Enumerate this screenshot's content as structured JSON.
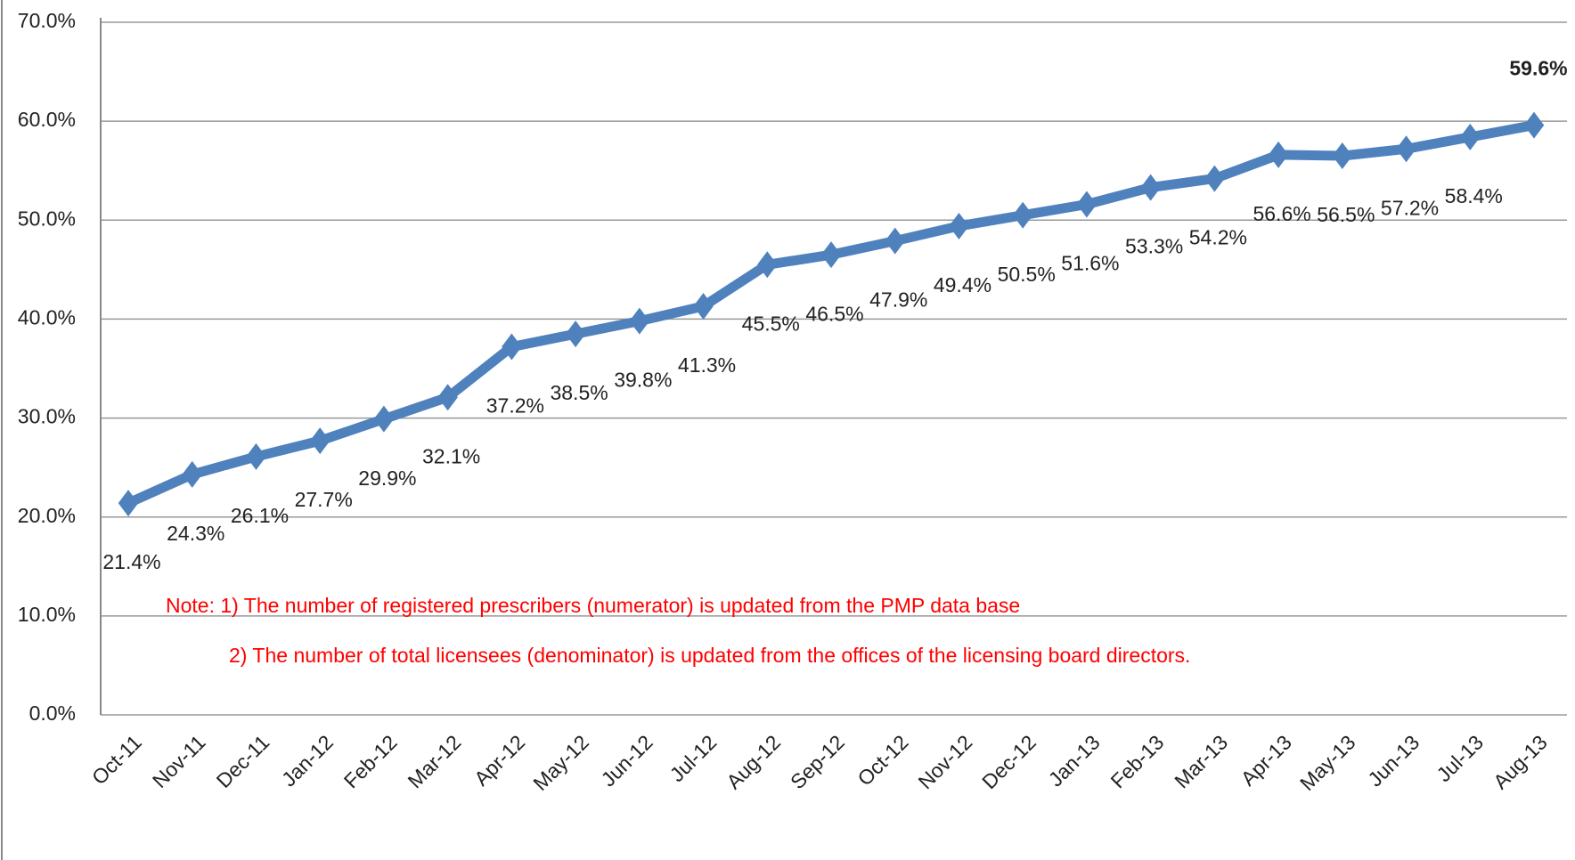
{
  "chart_data": {
    "type": "line",
    "categories": [
      "Oct-11",
      "Nov-11",
      "Dec-11",
      "Jan-12",
      "Feb-12",
      "Mar-12",
      "Apr-12",
      "May-12",
      "Jun-12",
      "Jul-12",
      "Aug-12",
      "Sep-12",
      "Oct-12",
      "Nov-12",
      "Dec-12",
      "Jan-13",
      "Feb-13",
      "Mar-13",
      "Apr-13",
      "May-13",
      "Jun-13",
      "Jul-13",
      "Aug-13"
    ],
    "series": [
      {
        "name": null,
        "color": "#4f81bd",
        "values": [
          21.4,
          24.3,
          26.1,
          27.7,
          29.9,
          32.1,
          37.2,
          38.5,
          39.8,
          41.3,
          45.5,
          46.5,
          47.9,
          49.4,
          50.5,
          51.6,
          53.3,
          54.2,
          56.6,
          56.5,
          57.2,
          58.4,
          59.6
        ],
        "value_labels": [
          "21.4%",
          "24.3%",
          "26.1%",
          "27.7%",
          "29.9%",
          "32.1%",
          "37.2%",
          "38.5%",
          "39.8%",
          "41.3%",
          "45.5%",
          "46.5%",
          "47.9%",
          "49.4%",
          "50.5%",
          "51.6%",
          "53.3%",
          "54.2%",
          "56.6%",
          "56.5%",
          "57.2%",
          "58.4%",
          "59.6%"
        ]
      }
    ],
    "ylim": [
      0,
      70
    ],
    "yticks": [
      {
        "value": 0,
        "label": "0.0%"
      },
      {
        "value": 10,
        "label": "10.0%"
      },
      {
        "value": 20,
        "label": "20.0%"
      },
      {
        "value": 30,
        "label": "30.0%"
      },
      {
        "value": 40,
        "label": "40.0%"
      },
      {
        "value": 50,
        "label": "50.0%"
      },
      {
        "value": 60,
        "label": "60.0%"
      },
      {
        "value": 70,
        "label": "70.0%"
      }
    ],
    "grid": true,
    "annotations": [
      "Note: 1) The number of registered prescribers (numerator) is updated from the PMP data base",
      "2)  The number of total licensees (denominator) is updated from the offices of the licensing board directors."
    ],
    "annotation_color": "#ff0000"
  }
}
